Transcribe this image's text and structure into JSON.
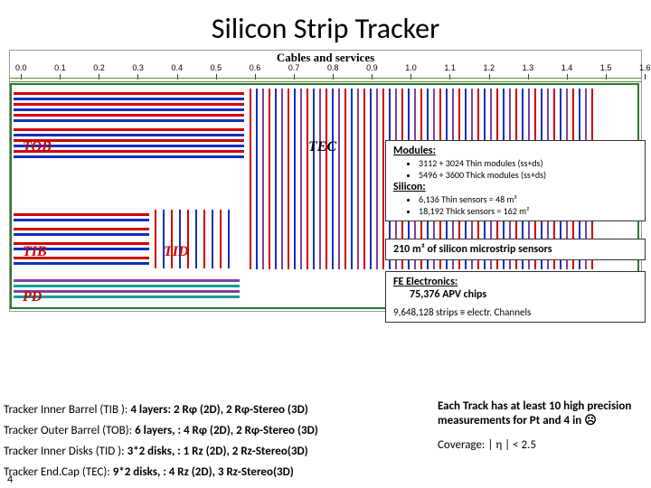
{
  "title": "Silicon Strip Tracker",
  "cables_label": "Cables and services",
  "ruler_ticks": [
    "0.0",
    "0.1",
    "0.2",
    "0.3",
    "0.4",
    "0.5",
    "0.6",
    "0.7",
    "0.8",
    "0.9",
    "1.0",
    "1.1",
    "1.2",
    "1.3",
    "1.4",
    "1.5",
    "1.6"
  ],
  "regions": {
    "tob": "TOB",
    "tec": "TEC",
    "tib": "TIB",
    "tid": "TID",
    "pd": "PD"
  },
  "modules": {
    "heading": "Modules:",
    "items": [
      "3112 + 3024 Thin modules  (ss+ds)",
      "5496 + 3600 Thick modules (ss+ds)"
    ],
    "silicon_heading": "Silicon:",
    "silicon_items": [
      "6,136  Thin  sensors  = 48 m²",
      "18,192  Thick sensors = 162 m²"
    ]
  },
  "sensors_line": "210 m² of silicon microstrip sensors",
  "electronics": {
    "heading": "FE Electronics:",
    "chips": "75,376 APV chips",
    "strips": "9,648,128 strips ≡ electr. Channels"
  },
  "specs": [
    {
      "label": "Tracker Inner Barrel   (TIB ):",
      "value": "4 layers:  2 Rφ (2D), 2 Rφ-Stereo (3D)"
    },
    {
      "label": "Tracker Outer Barrel (TOB):",
      "value": "6 layers, :  4 Rφ (2D), 2 Rφ-Stereo (3D)"
    },
    {
      "label": "Tracker Inner Disks   (TID ):",
      "value": "3*2 disks, :  1 Rz (2D), 2 Rz-Stereo(3D)"
    },
    {
      "label": "Tracker End.Cap        (TEC):",
      "value": "9*2 disks, :  4 Rz (2D), 3 Rz-Stereo(3D)"
    }
  ],
  "coverage": {
    "top": "Each Track has at least 10 high precision measurements for Pt and 4 in ☹",
    "line": "Coverage: | η | < 2.5"
  },
  "page_number": "4",
  "colors": {
    "red": "#d00000",
    "blue": "#1030c0",
    "purple": "#8040a0",
    "green": "#3a8a3a",
    "lgreen": "#a0d080"
  }
}
